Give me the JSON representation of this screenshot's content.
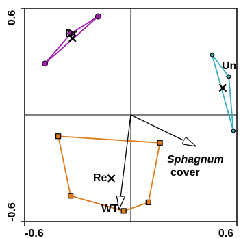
{
  "chart_data": {
    "type": "scatter",
    "title": "",
    "xlabel": "",
    "ylabel": "",
    "xlim": [
      -0.6,
      0.6
    ],
    "ylim": [
      -0.6,
      0.6
    ],
    "x_ticks": [
      "-0.6",
      "0.6"
    ],
    "y_ticks": [
      "0.6",
      "-0.6"
    ],
    "grid": false,
    "reference_lines": {
      "x": 0,
      "y": 0
    },
    "groups": [
      {
        "label": "Dr",
        "color": "#9b1fa8",
        "marker": "circle",
        "points": [
          [
            -0.485,
            0.289
          ],
          [
            -0.34,
            0.457
          ],
          [
            -0.184,
            0.554
          ]
        ],
        "centroid": [
          -0.33,
          0.431
        ]
      },
      {
        "label": "Un",
        "color": "#3aaec0",
        "marker": "diamond",
        "points": [
          [
            0.46,
            0.337
          ],
          [
            0.554,
            0.215
          ],
          [
            0.58,
            -0.09
          ]
        ],
        "centroid": [
          0.52,
          0.152
        ]
      },
      {
        "label": "Re",
        "color": "#e07b1a",
        "marker": "square",
        "points": [
          [
            -0.41,
            -0.12
          ],
          [
            0.165,
            -0.157
          ],
          [
            0.1,
            -0.492
          ],
          [
            -0.04,
            -0.54
          ],
          [
            -0.34,
            -0.455
          ]
        ],
        "centroid": [
          -0.11,
          -0.357
        ]
      }
    ],
    "vectors": [
      {
        "label": "Sphagnum",
        "sub_label": "cover",
        "x": 0.365,
        "y": -0.175
      },
      {
        "label": "WT",
        "x": -0.066,
        "y": -0.53
      }
    ]
  }
}
